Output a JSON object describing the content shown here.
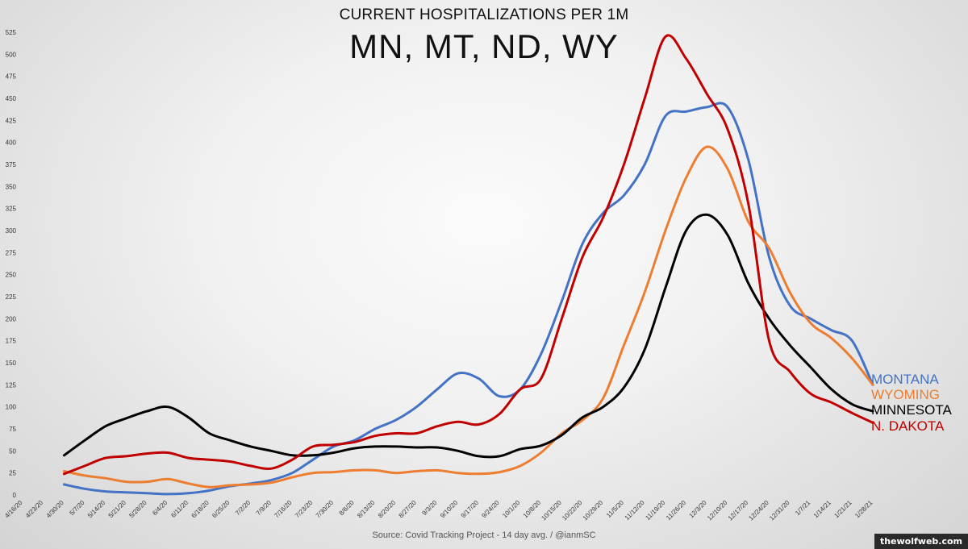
{
  "chart_data": {
    "type": "line",
    "suptitle": "CURRENT HOSPITALIZATIONS PER 1M",
    "title": "MN, MT, ND, WY",
    "source": "Source: Covid Tracking Project - 14 day avg. / @ianmSC",
    "ylim": [
      0,
      525
    ],
    "yticks": [
      0,
      25,
      50,
      75,
      100,
      125,
      150,
      175,
      200,
      225,
      250,
      275,
      300,
      325,
      350,
      375,
      400,
      425,
      450,
      475,
      500,
      525
    ],
    "x_tick_labels": [
      "4/16/20",
      "4/23/20",
      "4/30/20",
      "5/7/20",
      "5/14/20",
      "5/21/20",
      "5/28/20",
      "6/4/20",
      "6/11/20",
      "6/18/20",
      "6/25/20",
      "7/2/20",
      "7/9/20",
      "7/16/20",
      "7/23/20",
      "7/30/20",
      "8/6/20",
      "8/13/20",
      "8/20/20",
      "8/27/20",
      "9/3/20",
      "9/10/20",
      "9/17/20",
      "9/24/20",
      "10/1/20",
      "10/8/20",
      "10/15/20",
      "10/22/20",
      "10/29/20",
      "11/5/20",
      "11/12/20",
      "11/19/20",
      "11/26/20",
      "12/3/20",
      "12/10/20",
      "12/17/20",
      "12/24/20",
      "12/31/20",
      "1/7/21",
      "1/14/21",
      "1/21/21",
      "1/28/21"
    ],
    "grid": false,
    "legend": "end-of-line labels",
    "series": [
      {
        "name": "MONTANA",
        "color": "#4472C4",
        "x": [
          "4/30/20",
          "5/7/20",
          "5/14/20",
          "5/21/20",
          "5/28/20",
          "6/4/20",
          "6/11/20",
          "6/18/20",
          "6/25/20",
          "7/2/20",
          "7/9/20",
          "7/16/20",
          "7/23/20",
          "7/30/20",
          "8/6/20",
          "8/13/20",
          "8/20/20",
          "8/27/20",
          "9/3/20",
          "9/10/20",
          "9/17/20",
          "9/24/20",
          "10/1/20",
          "10/8/20",
          "10/15/20",
          "10/22/20",
          "10/29/20",
          "11/5/20",
          "11/12/20",
          "11/19/20",
          "11/26/20",
          "12/3/20",
          "12/10/20",
          "12/17/20",
          "12/24/20",
          "12/31/20",
          "1/7/21",
          "1/14/21",
          "1/21/21",
          "1/28/21"
        ],
        "values": [
          12,
          7,
          4,
          3,
          2,
          1,
          2,
          5,
          10,
          13,
          17,
          25,
          40,
          55,
          62,
          75,
          85,
          100,
          120,
          138,
          132,
          112,
          120,
          160,
          220,
          285,
          320,
          340,
          375,
          430,
          435,
          440,
          440,
          380,
          270,
          215,
          200,
          187,
          175,
          125
        ]
      },
      {
        "name": "WYOMING",
        "color": "#ED7D31",
        "x": [
          "4/30/20",
          "5/7/20",
          "5/14/20",
          "5/21/20",
          "5/28/20",
          "6/4/20",
          "6/11/20",
          "6/18/20",
          "6/25/20",
          "7/2/20",
          "7/9/20",
          "7/16/20",
          "7/23/20",
          "7/30/20",
          "8/6/20",
          "8/13/20",
          "8/20/20",
          "8/27/20",
          "9/3/20",
          "9/10/20",
          "9/17/20",
          "9/24/20",
          "10/1/20",
          "10/8/20",
          "10/15/20",
          "10/22/20",
          "10/29/20",
          "11/5/20",
          "11/12/20",
          "11/19/20",
          "11/26/20",
          "12/3/20",
          "12/10/20",
          "12/17/20",
          "12/24/20",
          "12/31/20",
          "1/7/21",
          "1/14/21",
          "1/21/21",
          "1/28/21"
        ],
        "values": [
          27,
          22,
          19,
          15,
          15,
          18,
          13,
          9,
          11,
          12,
          14,
          20,
          25,
          26,
          28,
          28,
          25,
          27,
          28,
          25,
          24,
          26,
          33,
          48,
          70,
          85,
          110,
          170,
          230,
          300,
          360,
          395,
          370,
          310,
          280,
          230,
          195,
          178,
          155,
          125
        ]
      },
      {
        "name": "MINNESOTA",
        "color": "#000000",
        "x": [
          "4/30/20",
          "5/7/20",
          "5/14/20",
          "5/21/20",
          "5/28/20",
          "6/4/20",
          "6/11/20",
          "6/18/20",
          "6/25/20",
          "7/2/20",
          "7/9/20",
          "7/16/20",
          "7/23/20",
          "7/30/20",
          "8/6/20",
          "8/13/20",
          "8/20/20",
          "8/27/20",
          "9/3/20",
          "9/10/20",
          "9/17/20",
          "9/24/20",
          "10/1/20",
          "10/8/20",
          "10/15/20",
          "10/22/20",
          "10/29/20",
          "11/5/20",
          "11/12/20",
          "11/19/20",
          "11/26/20",
          "12/3/20",
          "12/10/20",
          "12/17/20",
          "12/24/20",
          "12/31/20",
          "1/7/21",
          "1/14/21",
          "1/21/21",
          "1/28/21"
        ],
        "values": [
          45,
          62,
          78,
          87,
          95,
          100,
          88,
          70,
          62,
          55,
          50,
          45,
          45,
          48,
          53,
          55,
          55,
          54,
          54,
          50,
          44,
          44,
          52,
          56,
          68,
          88,
          100,
          122,
          165,
          235,
          300,
          318,
          295,
          240,
          200,
          170,
          145,
          120,
          103,
          95
        ]
      },
      {
        "name": "N. DAKOTA",
        "color": "#C00000",
        "x": [
          "4/30/20",
          "5/7/20",
          "5/14/20",
          "5/21/20",
          "5/28/20",
          "6/4/20",
          "6/11/20",
          "6/18/20",
          "6/25/20",
          "7/2/20",
          "7/9/20",
          "7/16/20",
          "7/23/20",
          "7/30/20",
          "8/6/20",
          "8/13/20",
          "8/20/20",
          "8/27/20",
          "9/3/20",
          "9/10/20",
          "9/17/20",
          "9/24/20",
          "10/1/20",
          "10/8/20",
          "10/15/20",
          "10/22/20",
          "10/29/20",
          "11/5/20",
          "11/12/20",
          "11/19/20",
          "11/26/20",
          "12/3/20",
          "12/10/20",
          "12/17/20",
          "12/24/20",
          "12/31/20",
          "1/7/21",
          "1/14/21",
          "1/21/21",
          "1/28/21"
        ],
        "values": [
          24,
          33,
          42,
          44,
          47,
          48,
          42,
          40,
          38,
          33,
          30,
          40,
          55,
          57,
          60,
          67,
          70,
          70,
          78,
          83,
          80,
          92,
          120,
          132,
          200,
          270,
          315,
          375,
          450,
          520,
          495,
          455,
          415,
          330,
          175,
          140,
          115,
          105,
          93,
          82
        ]
      }
    ]
  }
}
